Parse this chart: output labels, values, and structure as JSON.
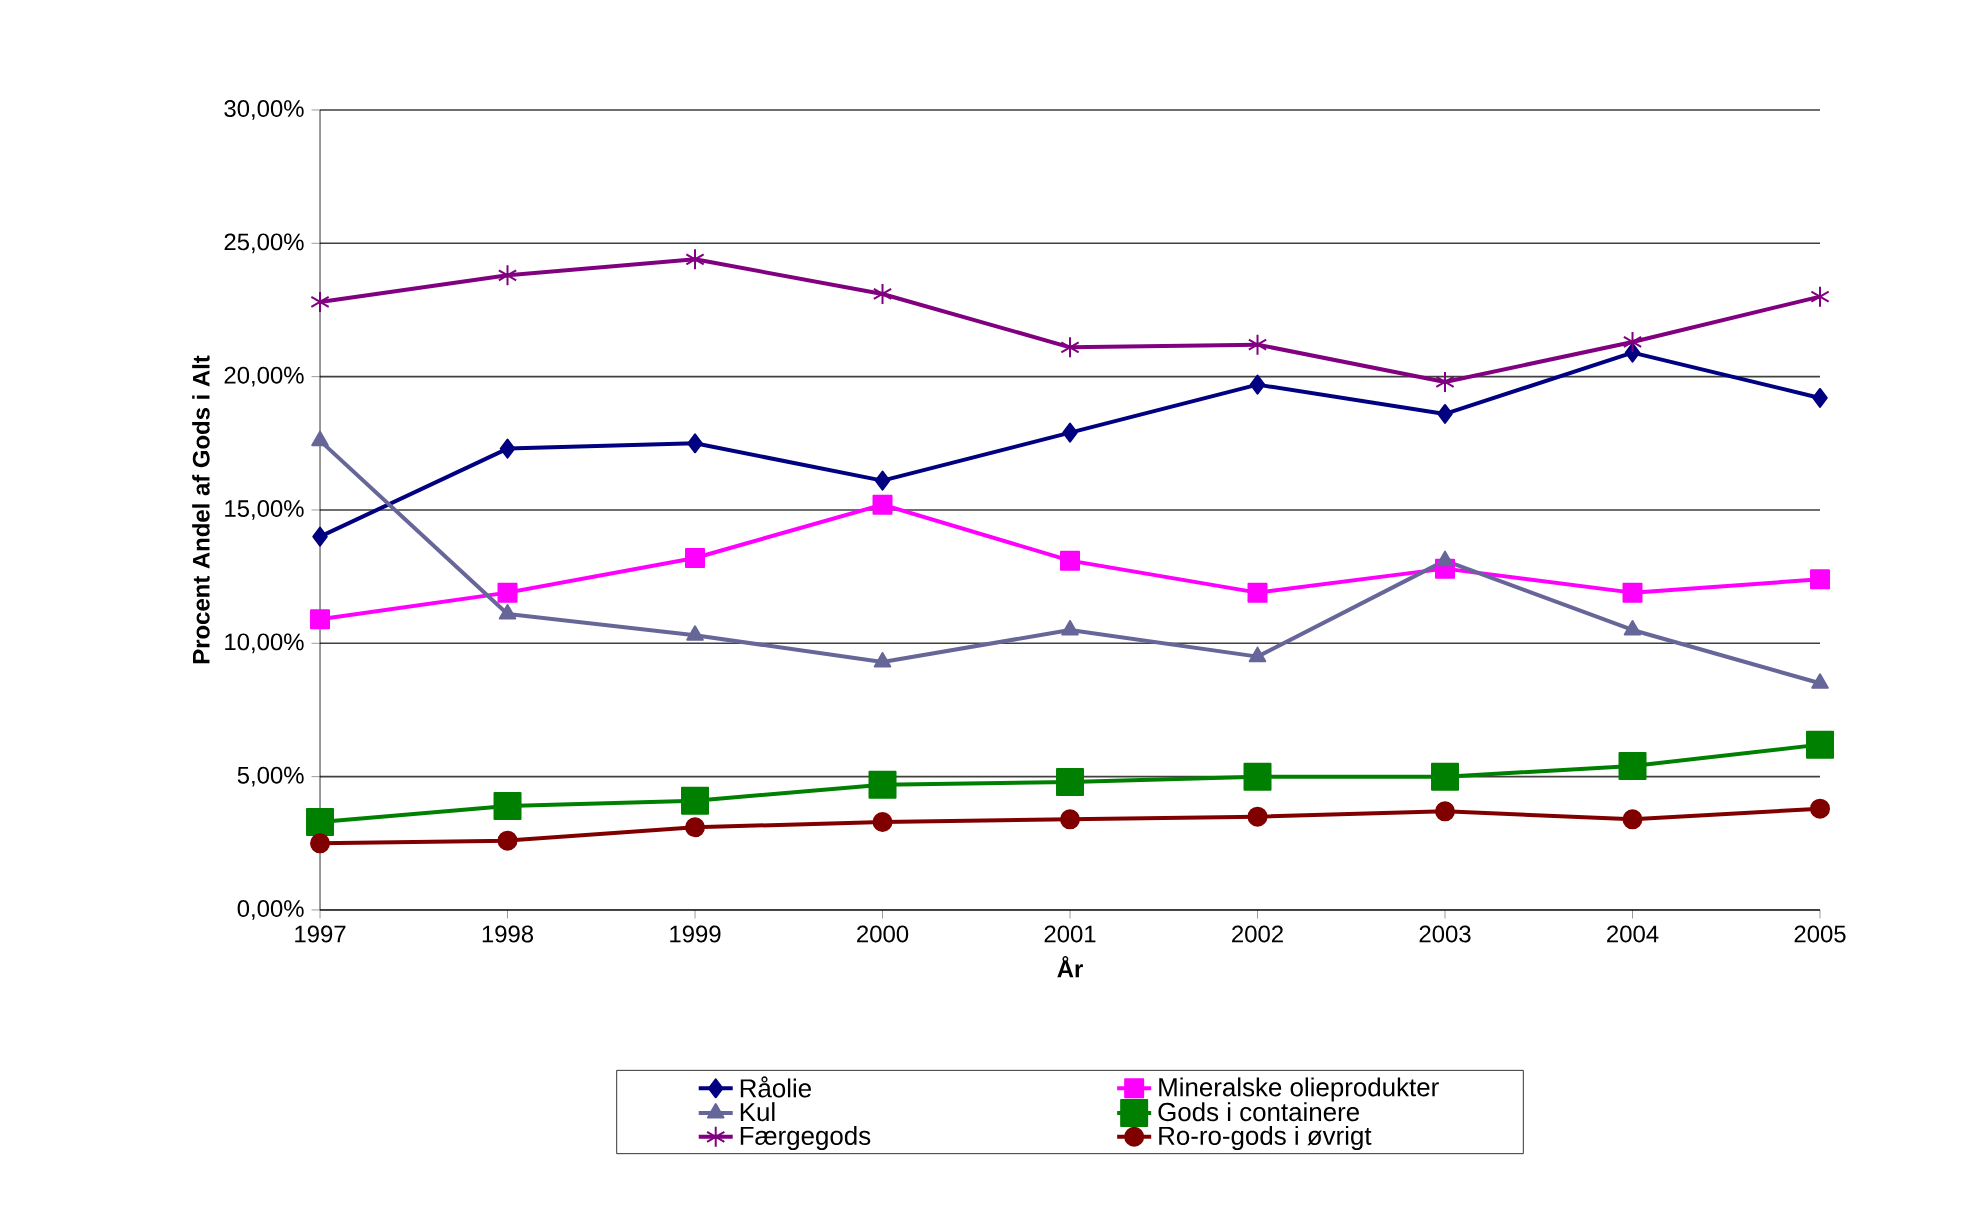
{
  "chart_data": {
    "type": "line",
    "xlabel": "År",
    "ylabel": "Procent Andel af Gods i Alt",
    "x": [
      1997,
      1998,
      1999,
      2000,
      2001,
      2002,
      2003,
      2004,
      2005
    ],
    "xlim": [
      1997,
      2005
    ],
    "xticks": [
      1997,
      1998,
      1999,
      2000,
      2001,
      2002,
      2003,
      2004,
      2005
    ],
    "ylim": [
      0,
      30
    ],
    "yticks": [
      {
        "value": 0,
        "label": "0,00%"
      },
      {
        "value": 5,
        "label": "5,00%"
      },
      {
        "value": 10,
        "label": "10,00%"
      },
      {
        "value": 15,
        "label": "15,00%"
      },
      {
        "value": 20,
        "label": "20,00%"
      },
      {
        "value": 25,
        "label": "25,00%"
      },
      {
        "value": 30,
        "label": "30,00%"
      }
    ],
    "grid": "y",
    "legend": "bottom",
    "series": [
      {
        "name": "Råolie",
        "color": "#000080",
        "marker": "diamond",
        "values": [
          14.0,
          17.3,
          17.5,
          16.1,
          17.9,
          19.7,
          18.6,
          20.9,
          19.2
        ]
      },
      {
        "name": "Mineralske olieprodukter",
        "color": "#ff00ff",
        "marker": "square",
        "values": [
          10.9,
          11.9,
          13.2,
          15.2,
          13.1,
          11.9,
          12.8,
          11.9,
          12.4
        ]
      },
      {
        "name": "Kul",
        "color": "#666699",
        "marker": "triangle",
        "values": [
          17.6,
          11.1,
          10.3,
          9.3,
          10.5,
          9.5,
          13.1,
          10.5,
          8.5
        ]
      },
      {
        "name": "Gods i containere",
        "color": "#008000",
        "marker": "square",
        "values": [
          3.3,
          3.9,
          4.1,
          4.7,
          4.8,
          5.0,
          5.0,
          5.4,
          6.2
        ]
      },
      {
        "name": "Færgegods",
        "color": "#800080",
        "marker": "cross",
        "values": [
          22.8,
          23.8,
          24.4,
          23.1,
          21.1,
          21.2,
          19.8,
          21.3,
          23.0
        ]
      },
      {
        "name": "Ro-ro-gods i øvrigt",
        "color": "#800000",
        "marker": "circle",
        "values": [
          2.5,
          2.6,
          3.1,
          3.3,
          3.4,
          3.5,
          3.7,
          3.4,
          3.8
        ]
      }
    ]
  }
}
